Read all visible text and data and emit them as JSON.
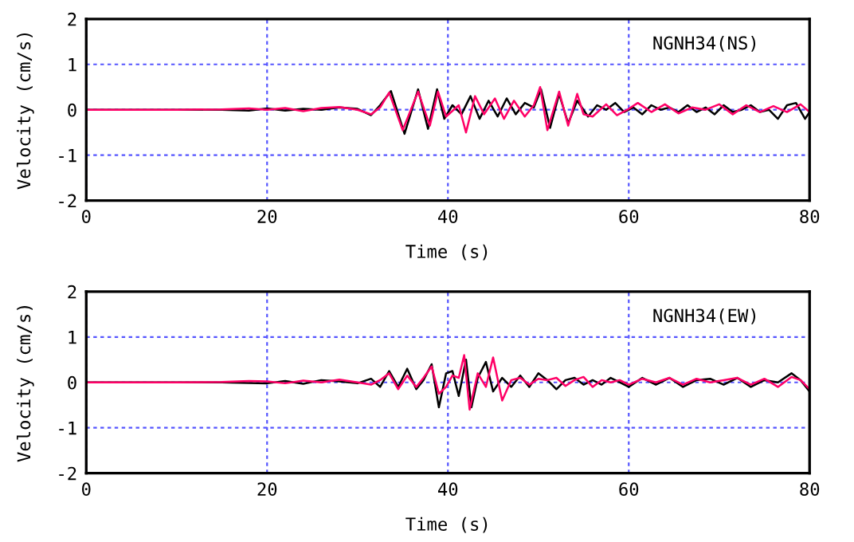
{
  "chart_data": [
    {
      "type": "line",
      "xlabel": "Time (s)",
      "ylabel": "Velocity (cm/s)",
      "annotations": [
        "NGNH34(NS)"
      ],
      "xlim": [
        0,
        80
      ],
      "ylim": [
        -2,
        2
      ],
      "xticks": [
        0,
        20,
        40,
        60,
        80
      ],
      "yticks": [
        -2,
        -1,
        0,
        1,
        2
      ],
      "grid": true,
      "legend": false,
      "series": [
        {
          "color": "#000000",
          "x": [
            0,
            5,
            15,
            18,
            20,
            22,
            24,
            26,
            28,
            30,
            31.5,
            32.5,
            33.7,
            35.2,
            36.7,
            37.8,
            38.8,
            39.6,
            40.5,
            41.5,
            42.5,
            43.5,
            44.5,
            45.5,
            46.5,
            47.5,
            48.5,
            49.5,
            50.3,
            51.3,
            52.3,
            53.3,
            54.3,
            55.5,
            56.5,
            57.5,
            58.5,
            59.5,
            60.5,
            61.5,
            62.5,
            63.5,
            64.5,
            65.5,
            66.5,
            67.5,
            68.5,
            69.5,
            70.5,
            71.5,
            72.5,
            73.5,
            74.5,
            75.5,
            76.5,
            77.5,
            78.5,
            79.5,
            80
          ],
          "values": [
            0,
            0,
            0,
            -0.02,
            0.03,
            -0.02,
            0.02,
            0,
            0.05,
            0.02,
            -0.12,
            0.1,
            0.41,
            -0.53,
            0.45,
            -0.42,
            0.45,
            -0.2,
            0.1,
            -0.1,
            0.3,
            -0.2,
            0.2,
            -0.15,
            0.25,
            -0.1,
            0.15,
            0.05,
            0.45,
            -0.4,
            0.35,
            -0.3,
            0.2,
            -0.15,
            0.1,
            0,
            0.15,
            -0.05,
            0.05,
            -0.1,
            0.1,
            0,
            0.05,
            -0.05,
            0.1,
            -0.05,
            0.05,
            -0.1,
            0.1,
            -0.05,
            0,
            0.1,
            -0.05,
            0,
            -0.2,
            0.1,
            0.15,
            -0.2,
            -0.05
          ]
        },
        {
          "color": "#ff0066",
          "x": [
            0,
            5,
            10,
            15,
            18,
            20,
            22,
            24,
            26,
            28,
            30,
            31.5,
            32.5,
            33.5,
            35,
            36.7,
            38,
            38.9,
            39.8,
            41.2,
            42,
            43,
            44,
            45.2,
            46.2,
            47.3,
            48.5,
            49.5,
            50.2,
            51,
            52.3,
            53.3,
            54.3,
            55,
            56,
            57.5,
            58.7,
            60,
            61,
            62.5,
            64,
            65.5,
            67,
            68.5,
            70,
            71.5,
            73,
            74.5,
            76,
            77.5,
            79,
            80
          ],
          "values": [
            0,
            0,
            0,
            0.01,
            0.03,
            0,
            0.04,
            -0.03,
            0.04,
            0.06,
            0,
            -0.1,
            0.05,
            0.38,
            -0.45,
            0.4,
            -0.35,
            0.4,
            -0.15,
            0.1,
            -0.5,
            0.3,
            -0.1,
            0.25,
            -0.2,
            0.2,
            -0.15,
            0.1,
            0.5,
            -0.45,
            0.4,
            -0.35,
            0.35,
            -0.1,
            -0.15,
            0.12,
            -0.12,
            0.02,
            0.15,
            -0.05,
            0.12,
            -0.08,
            0.05,
            0,
            0.12,
            -0.1,
            0.1,
            -0.05,
            0.08,
            -0.05,
            0.12,
            -0.05
          ]
        }
      ]
    },
    {
      "type": "line",
      "xlabel": "Time (s)",
      "ylabel": "Velocity (cm/s)",
      "annotations": [
        "NGNH34(EW)"
      ],
      "xlim": [
        0,
        80
      ],
      "ylim": [
        -2,
        2
      ],
      "xticks": [
        0,
        20,
        40,
        60,
        80
      ],
      "yticks": [
        -2,
        -1,
        0,
        1,
        2
      ],
      "grid": true,
      "legend": false,
      "series": [
        {
          "color": "#000000",
          "x": [
            0,
            5,
            15,
            20,
            22,
            24,
            26,
            28,
            30,
            31.5,
            32.5,
            33.5,
            34.5,
            35.5,
            36.5,
            37.3,
            38.2,
            39,
            39.8,
            40.5,
            41.2,
            42,
            42.6,
            43.3,
            44.2,
            45,
            46,
            47,
            48,
            49,
            50,
            51,
            52,
            53,
            54,
            55,
            56,
            57,
            58,
            59,
            60,
            61.5,
            63,
            64.5,
            66,
            67.5,
            69,
            70.5,
            72,
            73.5,
            75,
            76.5,
            78,
            79,
            80
          ],
          "values": [
            0,
            0,
            0,
            -0.02,
            0.03,
            -0.03,
            0.05,
            0.02,
            -0.02,
            0.08,
            -0.1,
            0.25,
            -0.1,
            0.3,
            -0.15,
            0.05,
            0.4,
            -0.55,
            0.2,
            0.25,
            -0.3,
            0.5,
            -0.55,
            0.1,
            0.45,
            -0.2,
            0.1,
            -0.1,
            0.15,
            -0.1,
            0.2,
            0.05,
            -0.15,
            0.05,
            0.1,
            -0.05,
            0.05,
            -0.05,
            0.1,
            0,
            -0.1,
            0.1,
            -0.05,
            0.1,
            -0.1,
            0.05,
            0.08,
            -0.05,
            0.1,
            -0.1,
            0.05,
            0,
            0.2,
            0.05,
            -0.2
          ]
        },
        {
          "color": "#ff0066",
          "x": [
            0,
            5,
            10,
            15,
            18,
            20,
            22,
            24,
            26,
            28,
            30,
            31.5,
            32.5,
            33.5,
            34.5,
            35.5,
            36.5,
            37.3,
            38.2,
            39,
            39.8,
            40.5,
            41.2,
            41.8,
            42.4,
            43.3,
            44.2,
            45,
            46,
            47,
            48,
            49,
            50,
            51,
            52,
            53,
            54,
            55,
            56,
            57,
            58,
            59,
            60,
            61.5,
            63,
            64.5,
            66,
            67.5,
            69,
            70.5,
            72,
            73.5,
            75,
            76.5,
            78,
            79,
            80
          ],
          "values": [
            0,
            0,
            0,
            0.01,
            0.03,
            0.02,
            -0.02,
            0.04,
            0,
            0.06,
            0,
            -0.05,
            0.05,
            0.2,
            -0.15,
            0.15,
            -0.1,
            0.1,
            0.35,
            -0.25,
            -0.1,
            0.15,
            0.1,
            0.6,
            -0.6,
            0.2,
            -0.1,
            0.55,
            -0.4,
            0.05,
            0.1,
            -0.05,
            0.08,
            0.05,
            0.1,
            -0.08,
            0.05,
            0.12,
            -0.1,
            0.05,
            0,
            0.05,
            -0.05,
            0.08,
            0,
            0.1,
            -0.05,
            0.08,
            0,
            0.05,
            0.1,
            -0.05,
            0.08,
            -0.1,
            0.12,
            0.05,
            -0.15
          ]
        }
      ]
    }
  ]
}
